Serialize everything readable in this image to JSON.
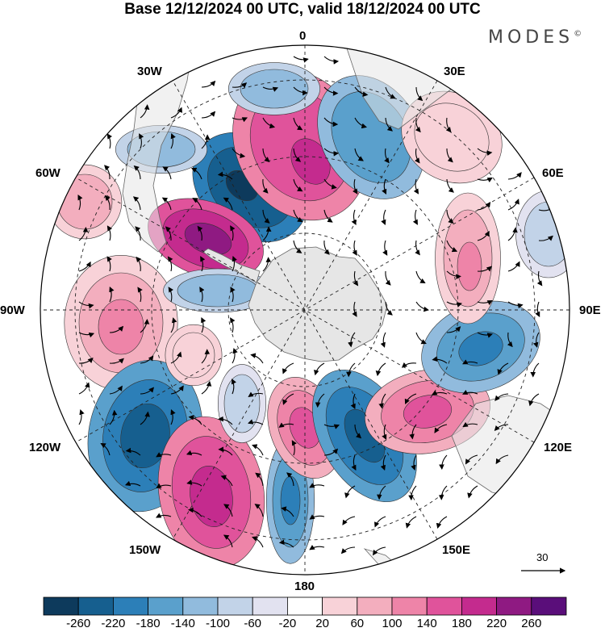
{
  "header": {
    "title": "Base 12/12/2024 00 UTC, valid 18/12/2024 00 UTC",
    "brand": "MODES",
    "brand_mark": "©"
  },
  "longitude_labels": {
    "lon_0": "0",
    "lon_30e": "30E",
    "lon_60e": "60E",
    "lon_90e": "90E",
    "lon_120e": "120E",
    "lon_150e": "150E",
    "lon_180": "180",
    "lon_150w": "150W",
    "lon_120w": "120W",
    "lon_90w": "90W",
    "lon_60w": "60W",
    "lon_30w": "30W"
  },
  "reference_vector": {
    "label": "30"
  },
  "colorbar": {
    "ticks": [
      "-260",
      "-220",
      "-180",
      "-140",
      "-100",
      "-60",
      "-20",
      "20",
      "60",
      "100",
      "140",
      "180",
      "220",
      "260"
    ],
    "colors": [
      "#0d3a5c",
      "#165f8f",
      "#2c7fb8",
      "#5aa0cc",
      "#91bbdd",
      "#c2d3e8",
      "#e2e2f0",
      "#ffffff",
      "#f8d2d8",
      "#f3aebe",
      "#ee84a8",
      "#e0539b",
      "#c42b8e",
      "#8f1a82",
      "#5a0e7a"
    ]
  },
  "map_style": {
    "land_color": "#e6e6e6",
    "coast_color": "#666666",
    "grid_style": "dashed"
  }
}
